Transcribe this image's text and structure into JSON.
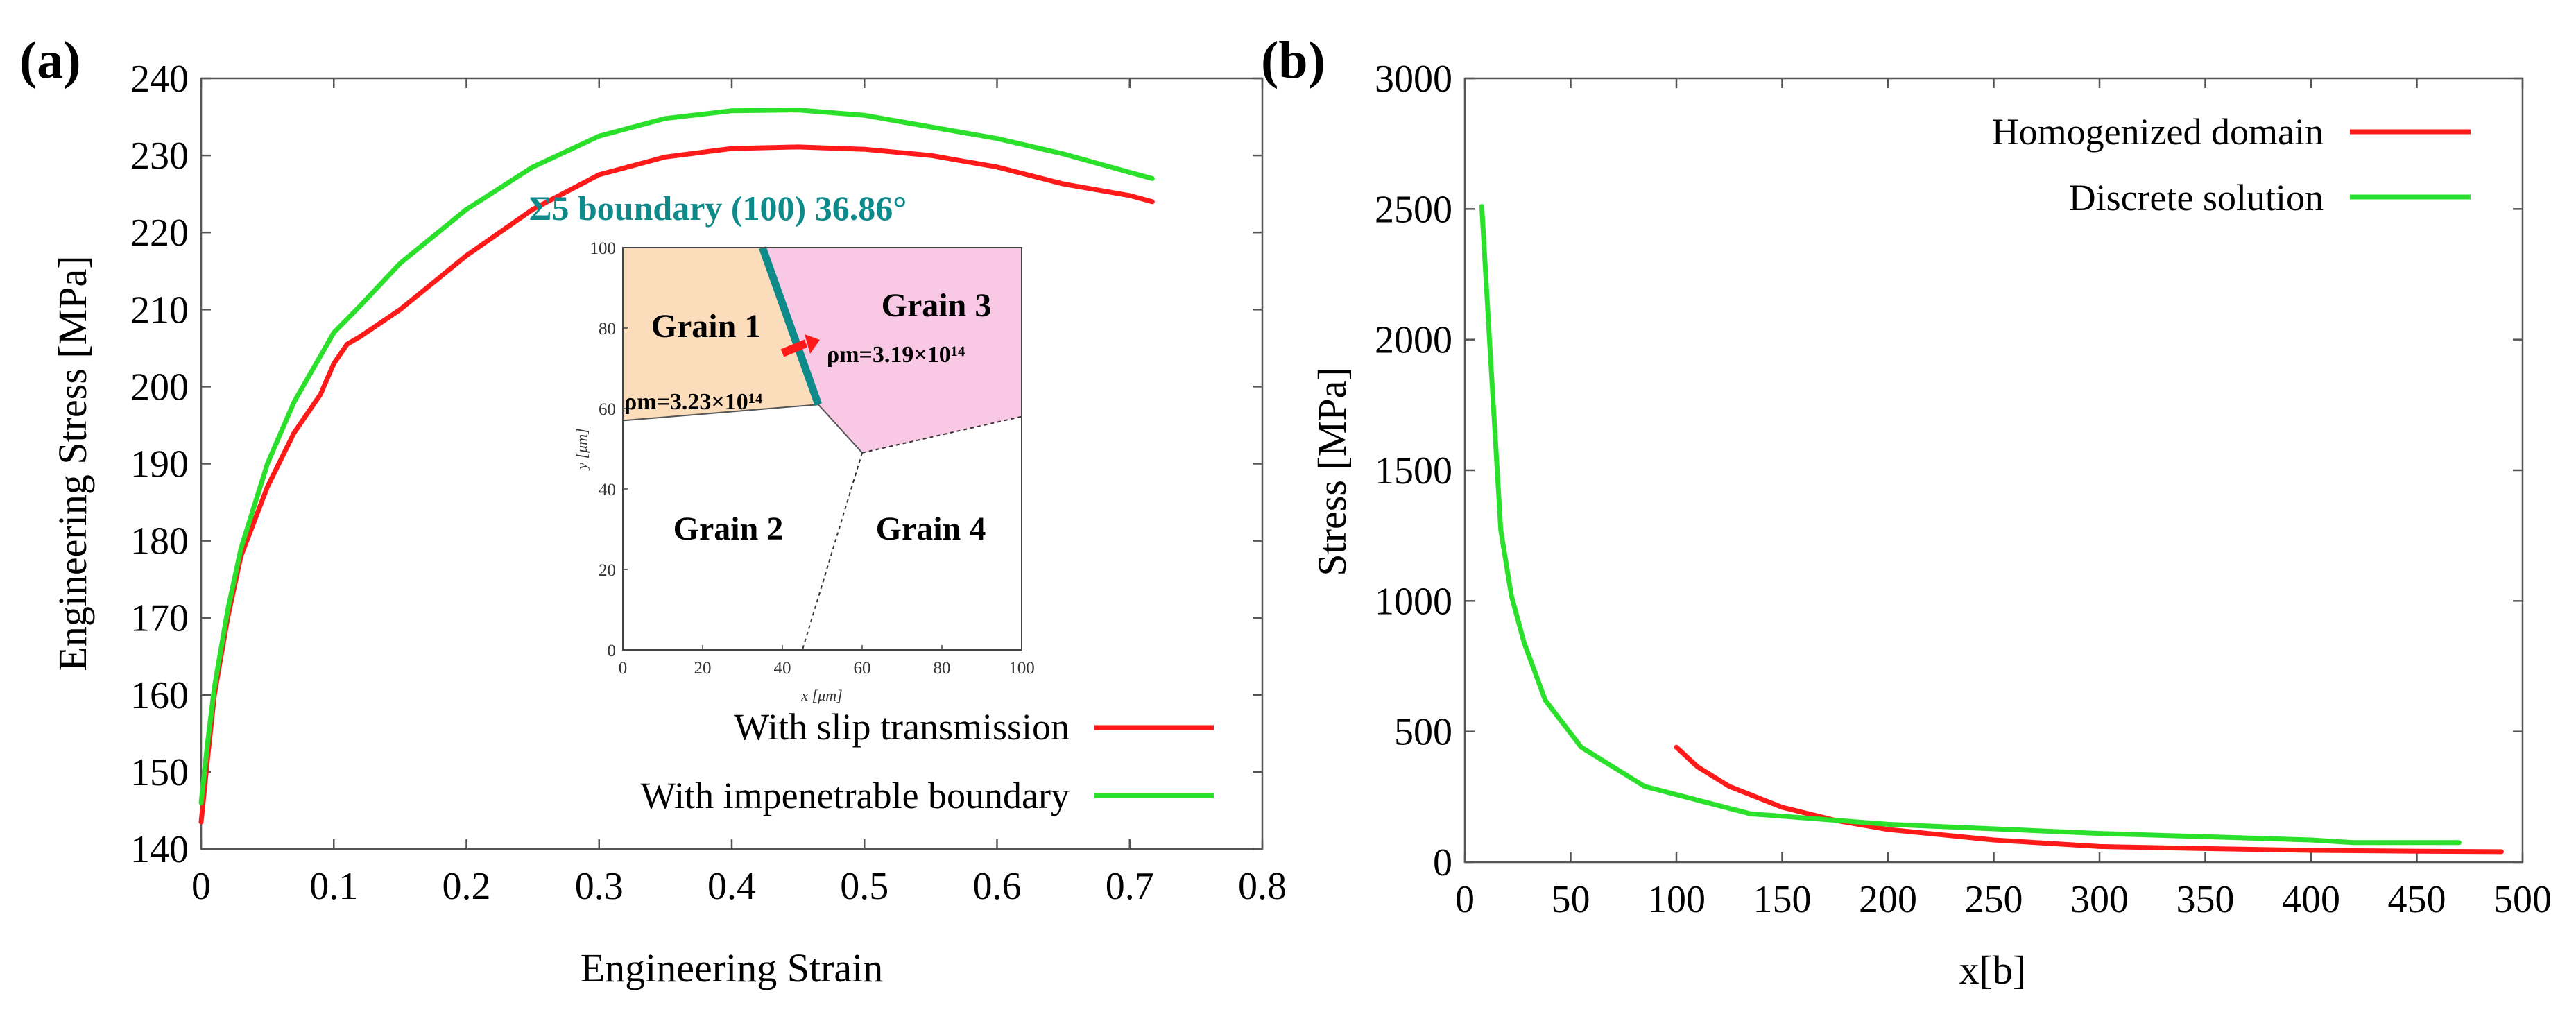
{
  "chart_data": [
    {
      "panel_label": "(a)",
      "type": "line",
      "xlabel": "Engineering Strain",
      "ylabel": "Engineering Stress [MPa]",
      "xlim": [
        0,
        0.8
      ],
      "ylim": [
        140,
        240
      ],
      "xticks": [
        "0",
        "0.1",
        "0.2",
        "0.3",
        "0.4",
        "0.5",
        "0.6",
        "0.7",
        "0.8"
      ],
      "yticks": [
        "140",
        "150",
        "160",
        "170",
        "180",
        "190",
        "200",
        "210",
        "220",
        "230",
        "240"
      ],
      "legend_position": "bottom-right",
      "series": [
        {
          "name": "With slip transmission",
          "color": "#ff1a1a",
          "x": [
            0.0,
            0.005,
            0.01,
            0.02,
            0.03,
            0.05,
            0.07,
            0.09,
            0.1,
            0.11,
            0.12,
            0.15,
            0.2,
            0.25,
            0.3,
            0.35,
            0.4,
            0.45,
            0.5,
            0.55,
            0.6,
            0.65,
            0.7,
            0.717
          ],
          "y": [
            143.5,
            152,
            160,
            170,
            178,
            187,
            194,
            199,
            203,
            205.5,
            206.5,
            210,
            217,
            223,
            227.5,
            229.8,
            230.9,
            231.1,
            230.8,
            230.0,
            228.5,
            226.3,
            224.8,
            224.0
          ]
        },
        {
          "name": "With impenetrable boundary",
          "color": "#2ae02a",
          "x": [
            0.0,
            0.005,
            0.01,
            0.02,
            0.03,
            0.05,
            0.07,
            0.09,
            0.1,
            0.12,
            0.15,
            0.2,
            0.25,
            0.3,
            0.35,
            0.4,
            0.45,
            0.5,
            0.55,
            0.6,
            0.65,
            0.7,
            0.717
          ],
          "y": [
            146,
            154,
            161,
            171,
            179,
            190,
            198,
            204,
            207,
            210.5,
            216,
            223,
            228.5,
            232.5,
            234.8,
            235.8,
            235.9,
            235.2,
            233.7,
            232.2,
            230.2,
            227.8,
            227.0
          ]
        }
      ],
      "inset": {
        "title": "Σ5 boundary (100) 36.86°",
        "title_color": "#0e8a8a",
        "xlabel": "x [μm]",
        "ylabel": "y [μm]",
        "xlim": [
          0,
          100
        ],
        "ylim": [
          0,
          100
        ],
        "xticks": [
          "0",
          "20",
          "40",
          "60",
          "80",
          "100"
        ],
        "yticks": [
          "0",
          "20",
          "40",
          "60",
          "80",
          "100"
        ],
        "boundary_color": "#0e8a8a",
        "grain1_fill": "#fbdcbb",
        "grain3_fill": "#f8c8e4",
        "arrow_color": "#ff1a1a",
        "grain_labels": [
          "Grain 1",
          "Grain 2",
          "Grain 3",
          "Grain 4"
        ],
        "rho_grain1": "ρm=3.23×10¹⁴",
        "rho_grain3": "ρm=3.19×10¹⁴",
        "grain_boundaries": {
          "sigma5": [
            [
              35,
              100
            ],
            [
              49,
              61
            ]
          ],
          "g1_g2": [
            [
              0,
              57
            ],
            [
              49,
              61
            ]
          ],
          "g3_g4": [
            [
              49,
              61
            ],
            [
              60,
              49
            ],
            [
              100,
              58
            ]
          ],
          "g2_g4": [
            [
              60,
              49
            ],
            [
              45,
              0
            ]
          ],
          "g3_upper": [
            [
              49,
              61
            ],
            [
              60,
              49
            ]
          ]
        }
      }
    },
    {
      "panel_label": "(b)",
      "type": "line",
      "xlabel": "x[b]",
      "ylabel": "Stress [MPa]",
      "xlim": [
        0,
        500
      ],
      "ylim": [
        0,
        3000
      ],
      "xticks": [
        "0",
        "50",
        "100",
        "150",
        "200",
        "250",
        "300",
        "350",
        "400",
        "450",
        "500"
      ],
      "yticks": [
        "0",
        "500",
        "1000",
        "1500",
        "2000",
        "2500",
        "3000"
      ],
      "legend_position": "top-right",
      "series": [
        {
          "name": "Homogenized domain",
          "color": "#ff1a1a",
          "x": [
            100,
            110,
            125,
            150,
            175,
            200,
            250,
            300,
            350,
            400,
            450,
            490
          ],
          "y": [
            440,
            365,
            290,
            210,
            160,
            125,
            85,
            60,
            52,
            45,
            42,
            40
          ]
        },
        {
          "name": "Discrete solution",
          "color": "#2ae02a",
          "x": [
            8,
            12,
            17,
            22,
            28,
            38,
            55,
            85,
            135,
            200,
            300,
            400,
            420,
            470
          ],
          "y": [
            2510,
            1950,
            1270,
            1020,
            840,
            620,
            440,
            290,
            185,
            145,
            110,
            85,
            75,
            75
          ]
        }
      ]
    }
  ]
}
